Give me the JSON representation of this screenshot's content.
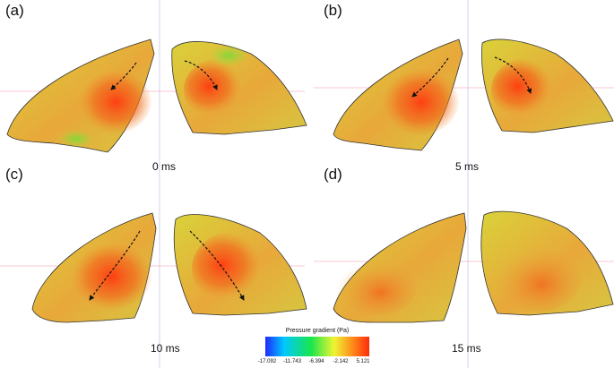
{
  "panels": [
    {
      "label": "(a)",
      "time": "0 ms"
    },
    {
      "label": "(b)",
      "time": "5 ms"
    },
    {
      "label": "(c)",
      "time": "10 ms"
    },
    {
      "label": "(d)",
      "time": "15 ms"
    }
  ],
  "colorbar": {
    "title": "Pressure gradient (Pa)",
    "ticks": [
      "-17.092",
      "-11.743",
      "-6.394",
      "-2.142",
      "5.121"
    ],
    "colors": [
      "#1f2bff",
      "#00c8ff",
      "#19e64c",
      "#eef532",
      "#ff8a1a",
      "#ff2a0c"
    ]
  }
}
